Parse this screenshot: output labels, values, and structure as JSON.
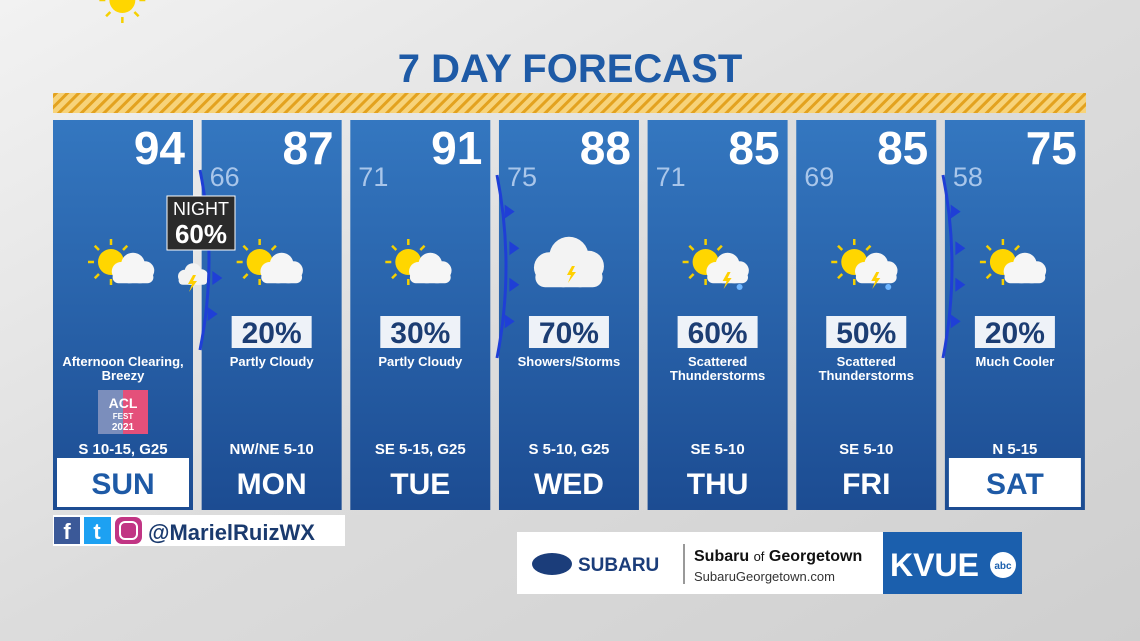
{
  "title": "7 DAY FORECAST",
  "days": [
    {
      "day": "SUN",
      "high": "94",
      "condition": [
        "Afternoon Clearing,",
        "Breezy"
      ],
      "wind": "S 10-15, G25"
    },
    {
      "day": "MON",
      "high": "87",
      "low": "66",
      "precip": "20%",
      "condition": [
        "Partly Cloudy"
      ],
      "wind": "NW/NE 5-10"
    },
    {
      "day": "TUE",
      "high": "91",
      "low": "71",
      "precip": "30%",
      "condition": [
        "Partly Cloudy"
      ],
      "wind": "SE 5-15, G25"
    },
    {
      "day": "WED",
      "high": "88",
      "low": "75",
      "precip": "70%",
      "condition": [
        "Showers/Storms"
      ],
      "wind": "S 5-10, G25"
    },
    {
      "day": "THU",
      "high": "85",
      "low": "71",
      "precip": "60%",
      "condition": [
        "Scattered",
        "Thunderstorms"
      ],
      "wind": "SE 5-10"
    },
    {
      "day": "FRI",
      "high": "85",
      "low": "69",
      "precip": "50%",
      "condition": [
        "Scattered",
        "Thunderstorms"
      ],
      "wind": "SE 5-10"
    },
    {
      "day": "SAT",
      "high": "75",
      "low": "58",
      "precip": "20%",
      "condition": [
        "Much Cooler"
      ],
      "wind": "N 5-15"
    }
  ],
  "night_badge": {
    "label": "NIGHT",
    "value": "60%"
  },
  "acl_badge": [
    "ACL",
    "FEST",
    "2021"
  ],
  "social_handle": "@MarielRuizWX",
  "sponsor": {
    "brand": "SUBARU",
    "dealer_name": "Subaru",
    "dealer_of": "of",
    "dealer_city": "Georgetown",
    "url": "SubaruGeorgetown.com"
  },
  "station": {
    "name": "KVUE",
    "network": "abc"
  }
}
